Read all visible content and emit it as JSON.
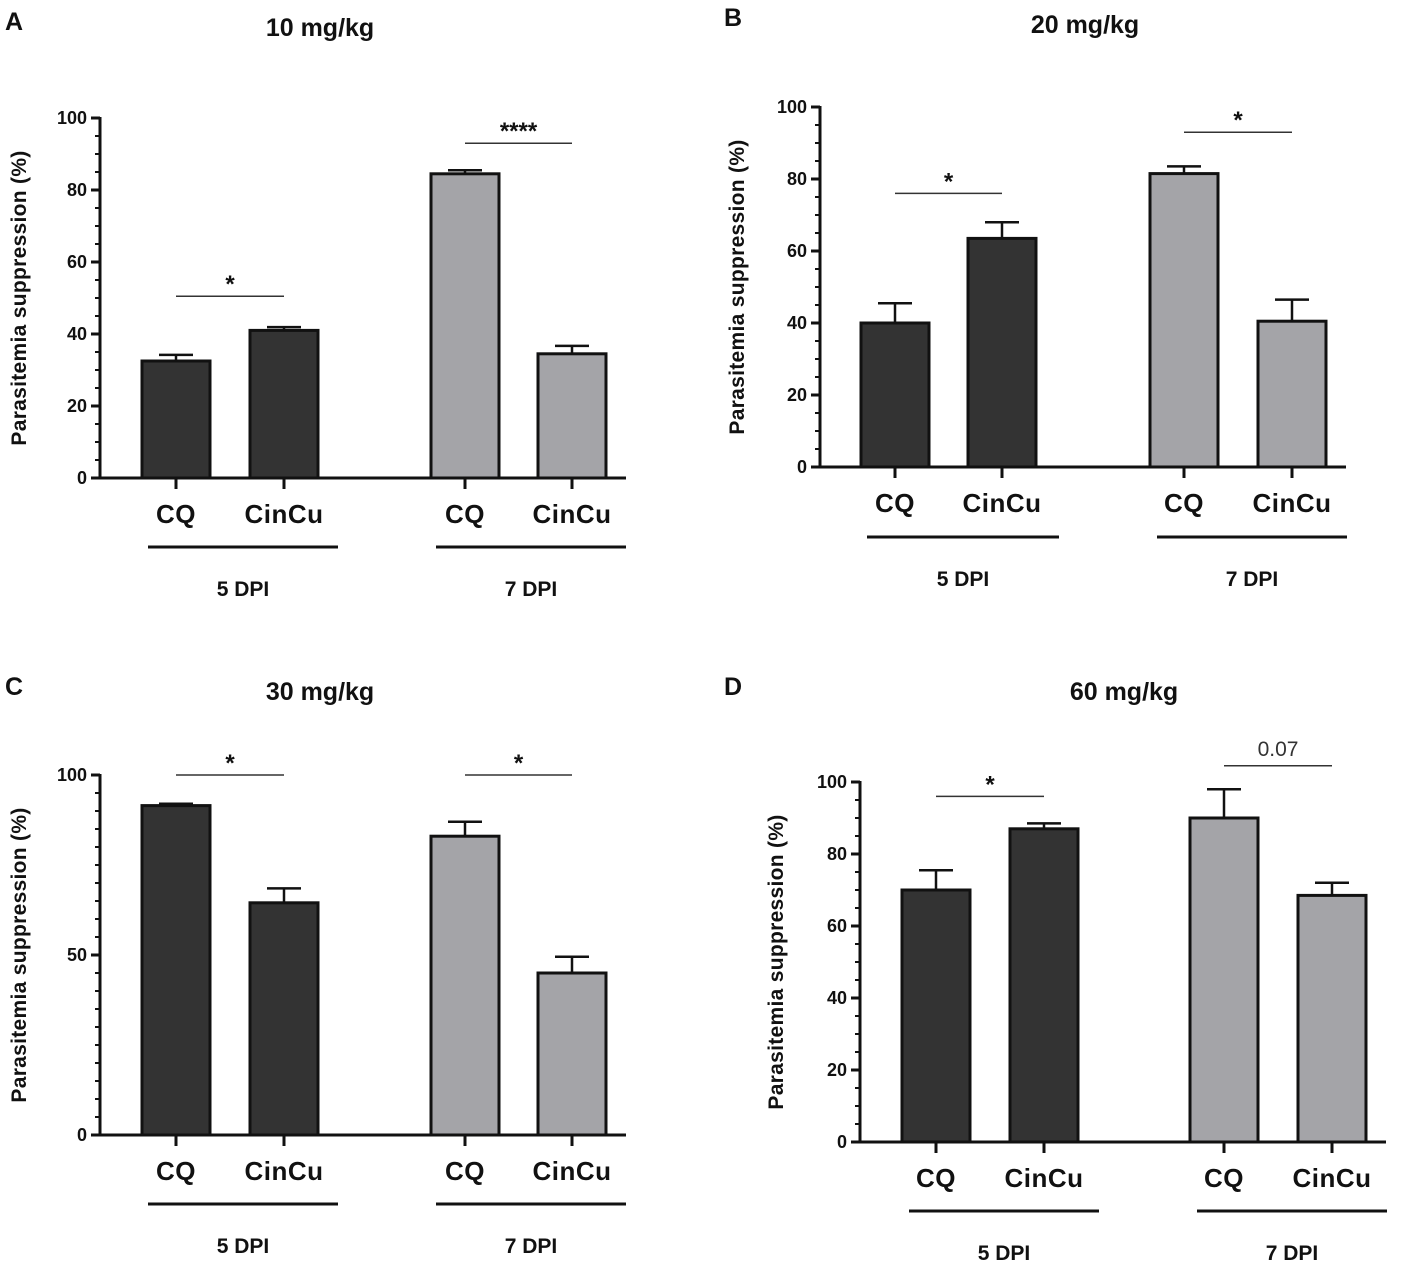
{
  "chart_data": [
    {
      "panel": "A",
      "type": "bar",
      "title": "10 mg/kg",
      "ylabel": "Parasitemia suppression (%)",
      "ylim": [
        0,
        100
      ],
      "yticks": [
        "0",
        "20",
        "40",
        "60",
        "80",
        "100"
      ],
      "bars": [
        {
          "category": "CQ",
          "group": "5 DPI",
          "value": 32.5,
          "error": 1.7,
          "color": "#333333"
        },
        {
          "category": "CinCu",
          "group": "5 DPI",
          "value": 41.0,
          "error": 0.9,
          "color": "#333333"
        },
        {
          "category": "CQ",
          "group": "7 DPI",
          "value": 84.5,
          "error": 1.0,
          "color": "#a4a4a8"
        },
        {
          "category": "CinCu",
          "group": "7 DPI",
          "value": 34.5,
          "error": 2.2,
          "color": "#a4a4a8"
        }
      ],
      "groups": [
        "5 DPI",
        "7 DPI"
      ],
      "significance": [
        {
          "bars": [
            0,
            1
          ],
          "label": "*",
          "y": 50.5
        },
        {
          "bars": [
            2,
            3
          ],
          "label": "****",
          "y": 93
        }
      ]
    },
    {
      "panel": "B",
      "type": "bar",
      "title": "20 mg/kg",
      "ylabel": "Parasitemia suppression (%)",
      "ylim": [
        0,
        100
      ],
      "yticks": [
        "0",
        "20",
        "40",
        "60",
        "80",
        "100"
      ],
      "bars": [
        {
          "category": "CQ",
          "group": "5 DPI",
          "value": 40.0,
          "error": 5.5,
          "color": "#333333"
        },
        {
          "category": "CinCu",
          "group": "5 DPI",
          "value": 63.5,
          "error": 4.5,
          "color": "#333333"
        },
        {
          "category": "CQ",
          "group": "7 DPI",
          "value": 81.5,
          "error": 2.0,
          "color": "#a4a4a8"
        },
        {
          "category": "CinCu",
          "group": "7 DPI",
          "value": 40.5,
          "error": 6.0,
          "color": "#a4a4a8"
        }
      ],
      "groups": [
        "5 DPI",
        "7 DPI"
      ],
      "significance": [
        {
          "bars": [
            0,
            1
          ],
          "label": "*",
          "y": 76
        },
        {
          "bars": [
            2,
            3
          ],
          "label": "*",
          "y": 93
        }
      ]
    },
    {
      "panel": "C",
      "type": "bar",
      "title": "30 mg/kg",
      "ylabel": "Parasitemia suppression (%)",
      "ylim": [
        0,
        100
      ],
      "yticks": [
        "0",
        "50",
        "100"
      ],
      "bars": [
        {
          "category": "CQ",
          "group": "5 DPI",
          "value": 91.5,
          "error": 0.5,
          "color": "#333333"
        },
        {
          "category": "CinCu",
          "group": "5 DPI",
          "value": 64.5,
          "error": 4.0,
          "color": "#333333"
        },
        {
          "category": "CQ",
          "group": "7 DPI",
          "value": 83.0,
          "error": 4.0,
          "color": "#a4a4a8"
        },
        {
          "category": "CinCu",
          "group": "7 DPI",
          "value": 45.0,
          "error": 4.5,
          "color": "#a4a4a8"
        }
      ],
      "groups": [
        "5 DPI",
        "7 DPI"
      ],
      "significance": [
        {
          "bars": [
            0,
            1
          ],
          "label": "*",
          "y": 100
        },
        {
          "bars": [
            2,
            3
          ],
          "label": "*",
          "y": 100
        }
      ]
    },
    {
      "panel": "D",
      "type": "bar",
      "title": "60 mg/kg",
      "ylabel": "Parasitemia suppression (%)",
      "ylim": [
        0,
        100
      ],
      "yticks": [
        "0",
        "20",
        "40",
        "60",
        "80",
        "100"
      ],
      "bars": [
        {
          "category": "CQ",
          "group": "5 DPI",
          "value": 70.0,
          "error": 5.5,
          "color": "#333333"
        },
        {
          "category": "CinCu",
          "group": "5 DPI",
          "value": 87.0,
          "error": 1.5,
          "color": "#333333"
        },
        {
          "category": "CQ",
          "group": "7 DPI",
          "value": 90.0,
          "error": 8.0,
          "color": "#a4a4a8"
        },
        {
          "category": "CinCu",
          "group": "7 DPI",
          "value": 68.5,
          "error": 3.5,
          "color": "#a4a4a8"
        }
      ],
      "groups": [
        "5 DPI",
        "7 DPI"
      ],
      "significance": [
        {
          "bars": [
            0,
            1
          ],
          "label": "*",
          "y": 96
        },
        {
          "bars": [
            2,
            3
          ],
          "label": "0.07",
          "y": 104.5
        }
      ]
    }
  ]
}
